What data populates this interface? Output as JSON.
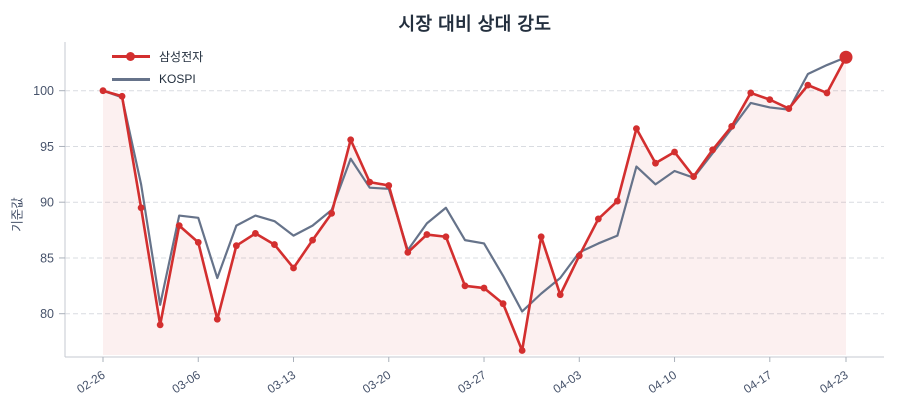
{
  "title": "시장 대비 상대 강도",
  "colors": {
    "samsung_red": "#d32f2f",
    "kospi_gray": "#66738a",
    "area_fill": "rgba(211,47,47,0.07)",
    "title_text": "#232f3e",
    "tick_text": "#47536b",
    "gridline": "#d9dce1",
    "spine": "#c6cad2"
  },
  "chart_data": {
    "type": "line",
    "title": "시장 대비 상대 강도",
    "ylabel": "기준값",
    "xlabel": "",
    "x_tick_labels": [
      "02-26",
      "03-06",
      "03-13",
      "03-20",
      "03-27",
      "04-03",
      "04-10",
      "04-17",
      "04-23"
    ],
    "x_tick_indices": [
      0,
      5,
      10,
      15,
      20,
      25,
      30,
      35,
      39
    ],
    "n_points": 40,
    "y_ticks": [
      80,
      85,
      90,
      95,
      100
    ],
    "ylim": [
      76,
      104.5
    ],
    "grid": "dashed-horizontal",
    "legend_position": "upper-left",
    "series": [
      {
        "name": "삼성전자",
        "color": "#d32f2f",
        "marker": "circle",
        "area_fill": true,
        "emphasized_last_point": true,
        "values": [
          100,
          99.5,
          89.5,
          79,
          87.9,
          86.4,
          79.5,
          86.1,
          87.2,
          86.2,
          84.1,
          86.6,
          89,
          95.6,
          91.8,
          91.5,
          85.5,
          87.1,
          86.9,
          82.5,
          82.3,
          80.9,
          76.7,
          86.9,
          81.7,
          85.2,
          88.5,
          90.1,
          96.6,
          93.5,
          94.5,
          92.3,
          94.7,
          96.8,
          99.8,
          99.2,
          98.4,
          100.5,
          99.8,
          103
        ]
      },
      {
        "name": "KOSPI",
        "color": "#66738a",
        "marker": "none",
        "area_fill": false,
        "values": [
          100,
          99.4,
          91.6,
          80.8,
          88.8,
          88.6,
          83.2,
          87.9,
          88.8,
          88.3,
          87,
          87.9,
          89.3,
          93.9,
          91.3,
          91.2,
          85.7,
          88.1,
          89.5,
          86.6,
          86.3,
          83.4,
          80.2,
          81.8,
          83.2,
          85.5,
          86.3,
          87,
          93.2,
          91.6,
          92.8,
          92.2,
          94.4,
          96.6,
          98.9,
          98.5,
          98.3,
          101.5,
          102.3,
          103
        ]
      }
    ]
  }
}
